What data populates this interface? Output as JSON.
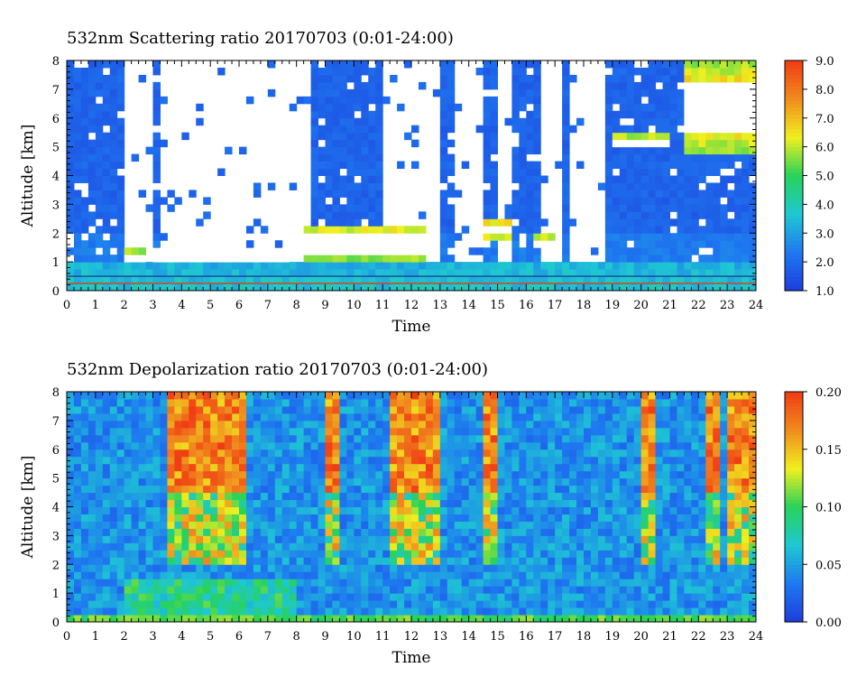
{
  "chart_data": [
    {
      "type": "heatmap",
      "title": "532nm Scattering ratio  20170703 (0:01-24:00)",
      "xlabel": "Time",
      "ylabel": "Altitude [km]",
      "xlim": [
        0,
        24
      ],
      "ylim": [
        0,
        8
      ],
      "x_ticks": [
        "0",
        "1",
        "2",
        "3",
        "4",
        "5",
        "6",
        "7",
        "8",
        "9",
        "10",
        "11",
        "12",
        "13",
        "14",
        "15",
        "16",
        "17",
        "18",
        "19",
        "20",
        "21",
        "22",
        "23",
        "24"
      ],
      "y_ticks": [
        "0",
        "1",
        "2",
        "3",
        "4",
        "5",
        "6",
        "7",
        "8"
      ],
      "colorbar": {
        "range": [
          1.0,
          9.0
        ],
        "ticks": [
          "1.0",
          "2.0",
          "3.0",
          "4.0",
          "5.0",
          "6.0",
          "7.0",
          "8.0",
          "9.0"
        ],
        "colormap": [
          "#1e3cdc",
          "#1e78f0",
          "#1ec8d2",
          "#28d25a",
          "#f0f01e",
          "#f08c1e",
          "#f03c14"
        ]
      },
      "features": {
        "surface_line_alt_km": 0.25,
        "low_layer_top_km": 0.5,
        "blank_regions_hours": [
          [
            2.0,
            3.0
          ],
          [
            3.3,
            8.6
          ],
          [
            11.0,
            13.0
          ],
          [
            13.5,
            14.6
          ],
          [
            15.0,
            15.6
          ],
          [
            16.5,
            17.3
          ],
          [
            17.6,
            18.8
          ]
        ],
        "cloud_layers": [
          {
            "t0": 2.0,
            "t1": 2.7,
            "base_km": 1.0,
            "top_km": 1.4
          },
          {
            "t0": 3.1,
            "t1": 7.8,
            "base_km": 0.95,
            "top_km": 1.55
          },
          {
            "t0": 8.2,
            "t1": 12.6,
            "base_km": 1.1,
            "top_km": 2.3
          },
          {
            "t0": 14.5,
            "t1": 15.4,
            "base_km": 1.8,
            "top_km": 2.5
          },
          {
            "t0": 16.3,
            "t1": 16.9,
            "base_km": 1.5,
            "top_km": 1.9
          },
          {
            "t0": 17.8,
            "t1": 18.5,
            "base_km": 2.0,
            "top_km": 2.5
          },
          {
            "t0": 19.0,
            "t1": 21.0,
            "base_km": 5.0,
            "top_km": 5.4
          },
          {
            "t0": 21.6,
            "t1": 23.9,
            "base_km": 4.8,
            "top_km": 8.0
          }
        ]
      }
    },
    {
      "type": "heatmap",
      "title": "532nm Depolarization ratio  20170703 (0:01-24:00)",
      "xlabel": "Time",
      "ylabel": "Altitude [km]",
      "xlim": [
        0,
        24
      ],
      "ylim": [
        0,
        8
      ],
      "x_ticks": [
        "0",
        "1",
        "2",
        "3",
        "4",
        "5",
        "6",
        "7",
        "8",
        "9",
        "10",
        "11",
        "12",
        "13",
        "14",
        "15",
        "16",
        "17",
        "18",
        "19",
        "20",
        "21",
        "22",
        "23",
        "24"
      ],
      "y_ticks": [
        "0",
        "1",
        "2",
        "3",
        "4",
        "5",
        "6",
        "7",
        "8"
      ],
      "colorbar": {
        "range": [
          0.0,
          0.2
        ],
        "ticks": [
          "0.00",
          "0.05",
          "0.10",
          "0.15",
          "0.20"
        ],
        "colormap": [
          "#1e3cdc",
          "#1e78f0",
          "#1ec8d2",
          "#28d25a",
          "#f0f01e",
          "#f08c1e",
          "#f03c14"
        ]
      },
      "features": {
        "high_depol_columns_hours": [
          [
            3.5,
            4.4
          ],
          [
            4.6,
            6.2
          ],
          [
            9.0,
            9.6
          ],
          [
            11.2,
            12.9
          ],
          [
            14.4,
            15.1
          ],
          [
            20.1,
            20.4
          ],
          [
            22.2,
            22.7
          ],
          [
            22.9,
            23.9
          ]
        ],
        "ice_cloud_layer_km": [
          4.5,
          8.0
        ],
        "surface_band_km": [
          0.0,
          0.15
        ]
      }
    }
  ]
}
